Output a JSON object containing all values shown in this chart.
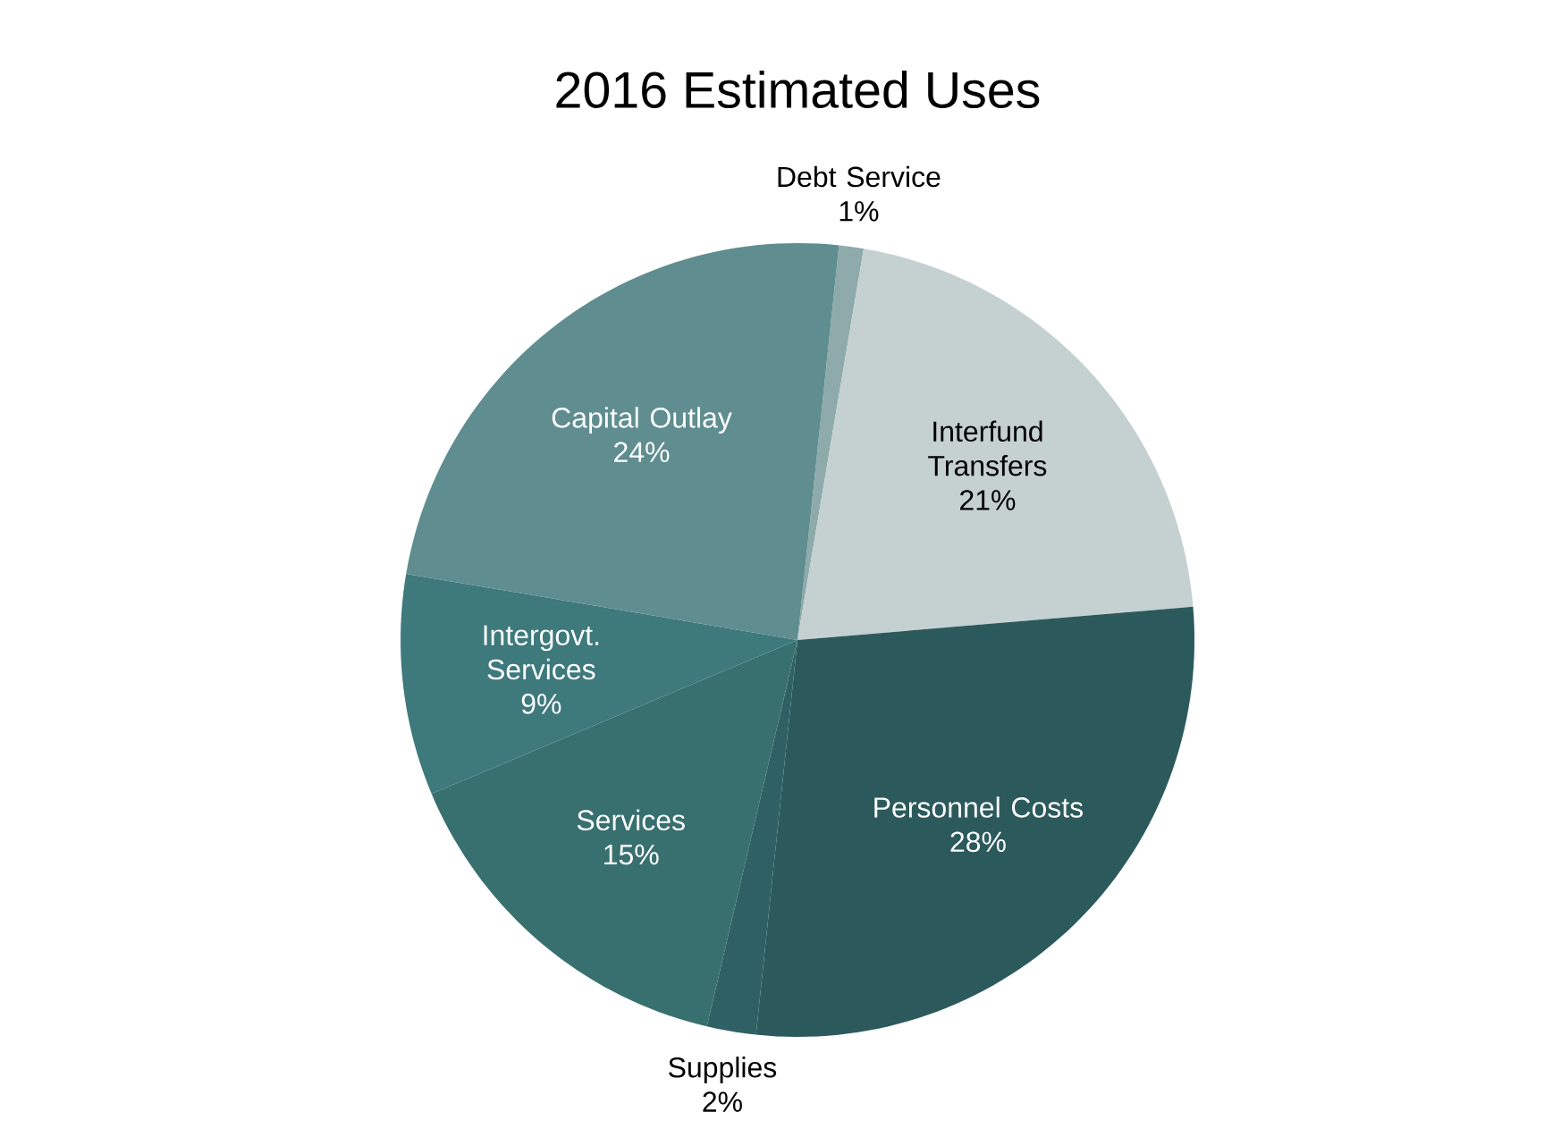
{
  "chart_data": {
    "type": "pie",
    "title": "2016 Estimated Uses",
    "categories": [
      "Debt Service",
      "Interfund Transfers",
      "Personnel Costs",
      "Supplies",
      "Services",
      "Intergovt. Services",
      "Capital Outlay"
    ],
    "values": [
      1,
      21,
      28,
      2,
      15,
      9,
      24
    ],
    "value_labels": [
      "1%",
      "21%",
      "28%",
      "2%",
      "15%",
      "9%",
      "24%"
    ],
    "colors": [
      "#8eaaaa",
      "#c5d1d1",
      "#2c5a5c",
      "#2f6164",
      "#38706f",
      "#3e797c",
      "#5f8d90"
    ]
  }
}
